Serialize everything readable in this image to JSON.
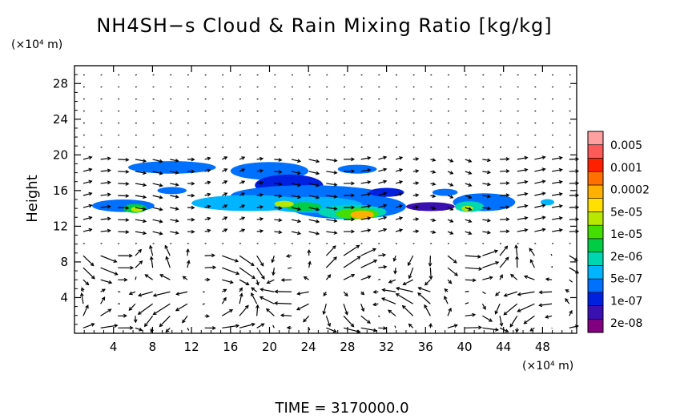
{
  "chart_data": {
    "type": "heatmap",
    "title": "NH4SH−s Cloud & Rain Mixing Ratio [kg/kg]",
    "ylabel": "Height",
    "y_unit_label": "(×10⁴ m)",
    "x_unit_label": "(×10⁴ m)",
    "xlim": [
      0,
      51.5
    ],
    "ylim": [
      0,
      30
    ],
    "x_ticks": [
      4,
      8,
      12,
      16,
      20,
      24,
      28,
      32,
      36,
      40,
      44,
      48
    ],
    "y_ticks": [
      4,
      8,
      12,
      16,
      20,
      24,
      28
    ],
    "footer": "TIME  =  3170000.0",
    "colorbar": {
      "labels": [
        "0.005",
        "0.001",
        "0.0002",
        "5e-05",
        "1e-05",
        "2e-06",
        "5e-07",
        "1e-07",
        "2e-08"
      ],
      "colors": [
        "#800080",
        "#3a10b0",
        "#0020e0",
        "#0070ff",
        "#00b4ff",
        "#00d6b0",
        "#00cc44",
        "#44dd00",
        "#b8e800",
        "#ffe000",
        "#ffb000",
        "#ff7000",
        "#ff2000",
        "#ff5a5a",
        "#ffa0a0"
      ]
    },
    "overlay": "wind vectors"
  },
  "colors": {
    "background": "#ffffff",
    "axis": "#000000"
  }
}
